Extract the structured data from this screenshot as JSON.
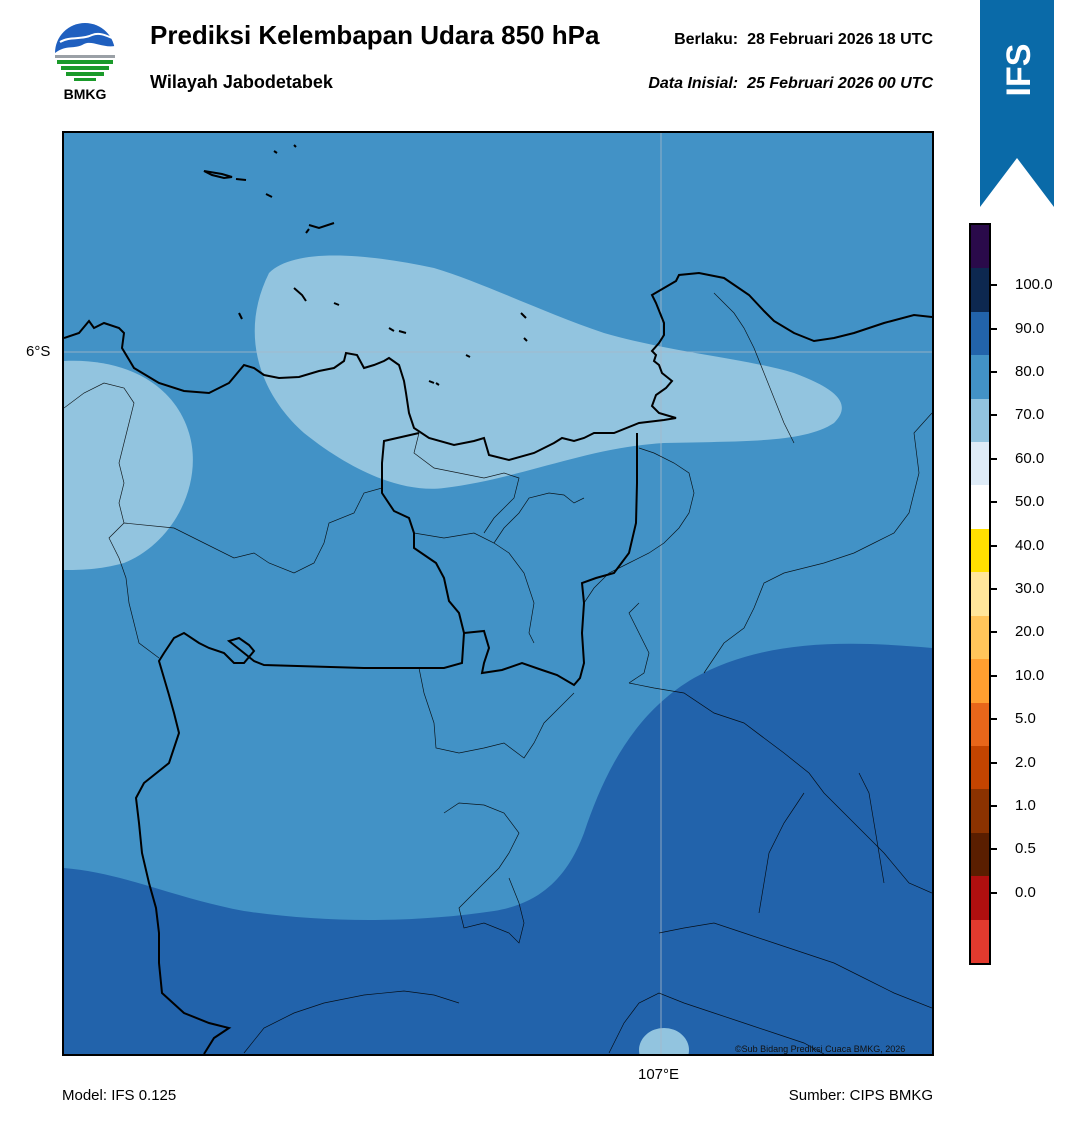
{
  "header": {
    "logo_text": "BMKG",
    "title": "Prediksi Kelembapan Udara 850 hPa",
    "region": "Wilayah Jabodetabek",
    "valid_label": "Berlaku:",
    "valid_value": "28 Februari 2026 18 UTC",
    "init_label": "Data Inisial:",
    "init_value": "25 Februari 2026 00 UTC",
    "badge": "IFS"
  },
  "map": {
    "lat_label": "6°S",
    "lon_label": "107°E",
    "copyright": "©Sub Bidang Prediksi Cuaca BMKG, 2026"
  },
  "colorbar": {
    "labels": [
      "100.0",
      "90.0",
      "80.0",
      "70.0",
      "60.0",
      "50.0",
      "40.0",
      "30.0",
      "20.0",
      "10.0",
      "5.0",
      "2.0",
      "1.0",
      "0.5",
      "0.0"
    ],
    "colors_top_to_bottom": [
      "#2a0a4a",
      "#0d2850",
      "#2263ab",
      "#4292c6",
      "#92c4df",
      "#deebf7",
      "#ffffff",
      "#ffe000",
      "#ffe69a",
      "#ffc55a",
      "#ff9f30",
      "#e8661a",
      "#c44400",
      "#8b3200",
      "#5a1e00",
      "#b00f0f",
      "#e23a2e"
    ]
  },
  "footer": {
    "model": "Model: IFS 0.125",
    "source": "Sumber: CIPS BMKG"
  }
}
